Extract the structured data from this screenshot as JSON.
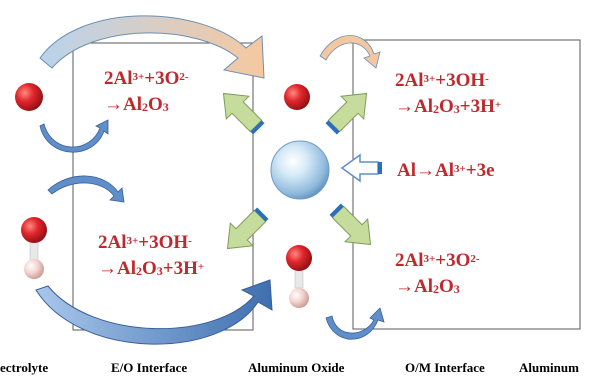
{
  "equations": {
    "eo_top": {
      "line1": [
        "2Al",
        "3+",
        "+3O",
        "2-"
      ],
      "line2": [
        "→Al",
        "2",
        "O",
        "3"
      ]
    },
    "eo_bottom": {
      "line1": [
        "2Al",
        "3+",
        "+3OH",
        "-"
      ],
      "line2": [
        "→Al",
        "2",
        "O",
        "3",
        "+3H",
        "+"
      ]
    },
    "om_top": {
      "line1": [
        "2Al",
        "3+",
        "+3OH",
        "-"
      ],
      "line2": [
        "→Al",
        "2",
        "O",
        "3",
        "+3H",
        "+"
      ]
    },
    "om_middle": {
      "line1": [
        "Al→Al",
        "3+",
        "+3e"
      ]
    },
    "om_bottom": {
      "line1": [
        "2Al",
        "3+",
        "+3O",
        "2-"
      ],
      "line2": [
        "→Al",
        "2",
        "O",
        "3"
      ]
    }
  },
  "labels": {
    "electrolyte": "ectrolyte",
    "eo_interface": "E/O Interface",
    "aluminum_oxide": "Aluminum Oxide",
    "om_interface": "O/M Interface",
    "aluminum": "Aluminum"
  },
  "colors": {
    "equation_red": "#c0282d",
    "sphere_red": "#d32026",
    "hydrogen_pink": "#f2c9c4",
    "ion_blue": "#a6cde8",
    "green_arrow": "#c6dc9c",
    "blue_arrow": "#5f8fca",
    "tan_arrow": "#f3c7a0"
  }
}
